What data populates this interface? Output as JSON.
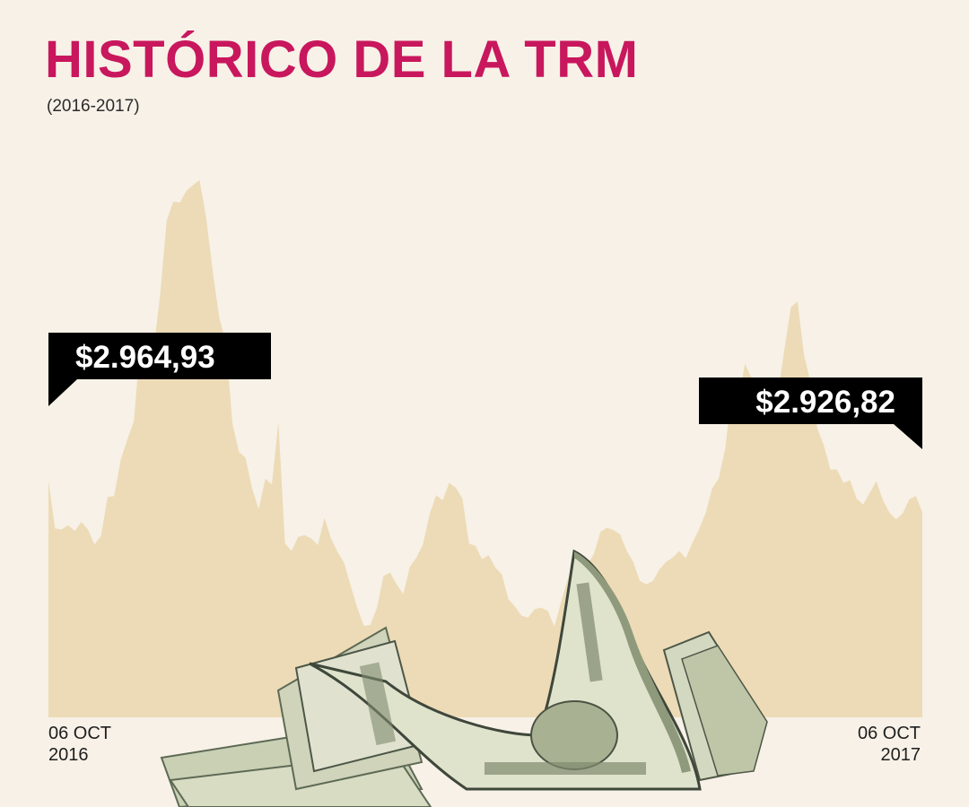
{
  "title": "HISTÓRICO DE LA TRM",
  "subtitle": "(2016-2017)",
  "colors": {
    "title": "#c8175d",
    "area_fill": "#ecdbb6",
    "background": "#f7f1e7",
    "callout_bg": "#000000",
    "callout_text": "#ffffff"
  },
  "x_labels": {
    "start": [
      "06 OCT",
      "2016"
    ],
    "end": [
      "06 OCT",
      "2017"
    ]
  },
  "callouts": {
    "start": "$2.964,93",
    "end": "$2.926,82"
  },
  "decorative_image": "us-dollar-bills-stack",
  "chart_data": {
    "type": "area",
    "x_start": "06 OCT 2016",
    "x_end": "06 OCT 2017",
    "ylabel": "",
    "ylim": [
      2680,
      3370
    ],
    "grid": false,
    "values": [
      2964.93,
      2907,
      2906,
      2911,
      2904,
      2915,
      2906,
      2888,
      2898,
      2945,
      2946,
      2990,
      3014,
      3036,
      3130,
      3126,
      3122,
      3188,
      3277,
      3300,
      3299,
      3313,
      3320,
      3326,
      3281,
      3216,
      3160,
      3131,
      3033,
      2999,
      2992,
      2955,
      2930,
      2967,
      2960,
      3035,
      2889,
      2880,
      2897,
      2899,
      2895,
      2887,
      2920,
      2895,
      2879,
      2866,
      2838,
      2812,
      2790,
      2791,
      2812,
      2850,
      2854,
      2840,
      2828,
      2861,
      2872,
      2888,
      2924,
      2947,
      2941,
      2962,
      2956,
      2943,
      2889,
      2886,
      2870,
      2875,
      2860,
      2852,
      2822,
      2813,
      2802,
      2800,
      2810,
      2812,
      2808,
      2789,
      2818,
      2845,
      2865,
      2870,
      2864,
      2876,
      2903,
      2908,
      2905,
      2900,
      2880,
      2867,
      2844,
      2840,
      2844,
      2858,
      2867,
      2872,
      2880,
      2871,
      2890,
      2906,
      2925,
      2955,
      2967,
      3003,
      3070,
      3060,
      3105,
      3088,
      3085,
      3061,
      3041,
      3068,
      3122,
      3173,
      3180,
      3115,
      3083,
      3028,
      3007,
      2978,
      2978,
      2962,
      2965,
      2943,
      2936,
      2950,
      2964,
      2941,
      2926,
      2918,
      2925,
      2942,
      2946,
      2926.82
    ]
  }
}
